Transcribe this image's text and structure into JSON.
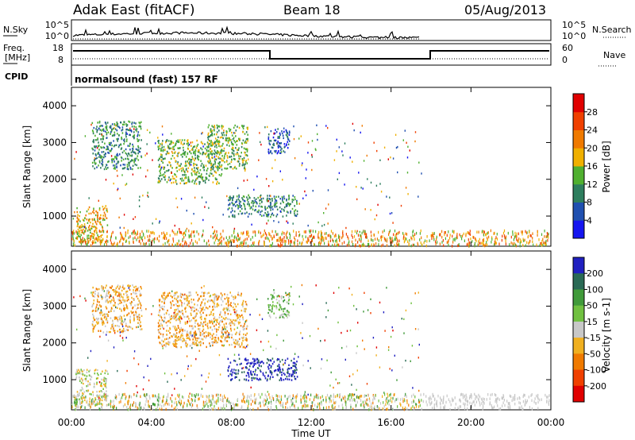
{
  "header": {
    "station": "Adak East (fitACF)",
    "beam": "Beam 18",
    "date": "05/Aug/2013"
  },
  "labels": {
    "nsky": "N.Sky",
    "nsearch": "N.Search",
    "freq_a": "Freq.",
    "freq_b": "[MHz]",
    "nave": "Nave",
    "cpid": "CPID",
    "program": "normalsound (fast) 157 RF",
    "xlabel": "Time UT"
  },
  "noise_axis": {
    "left": [
      "10^5",
      "10^0"
    ],
    "right": [
      "10^5",
      "10^0"
    ]
  },
  "freq_axis": {
    "left": [
      "18",
      "8"
    ],
    "right": [
      "60",
      "0"
    ]
  },
  "x_ticks": [
    "00:00",
    "04:00",
    "08:00",
    "12:00",
    "16:00",
    "20:00",
    "00:00"
  ],
  "chart_data": [
    {
      "type": "heatmap",
      "name": "power-panel",
      "xlabel": "Time UT",
      "ylabel": "Slant Range [km]",
      "xlim": [
        0,
        24
      ],
      "ylim": [
        180,
        4500
      ],
      "y_ticks": [
        1000,
        2000,
        3000,
        4000
      ],
      "colorbar": {
        "label": "Power [dB]",
        "ticks": [
          "4",
          "8",
          "12",
          "16",
          "20",
          "24",
          "28"
        ],
        "colors": [
          "#1515f0",
          "#2050b0",
          "#2e7e5e",
          "#50b030",
          "#f0b000",
          "#f07a00",
          "#f04000",
          "#e00000"
        ]
      },
      "regions": [
        {
          "t": [
            0.2,
            1.8
          ],
          "r": [
            300,
            1300
          ],
          "level": 4
        },
        {
          "t": [
            1.0,
            3.5
          ],
          "r": [
            2300,
            3600
          ],
          "level": 2
        },
        {
          "t": [
            4.3,
            7.5
          ],
          "r": [
            1900,
            3100
          ],
          "level": 3
        },
        {
          "t": [
            6.8,
            8.8
          ],
          "r": [
            2300,
            3500
          ],
          "level": 3
        },
        {
          "t": [
            7.8,
            11.3
          ],
          "r": [
            1000,
            1600
          ],
          "level": 2
        },
        {
          "t": [
            9.8,
            10.9
          ],
          "r": [
            2700,
            3400
          ],
          "level": 1
        }
      ]
    },
    {
      "type": "heatmap",
      "name": "velocity-panel",
      "xlabel": "Time UT",
      "ylabel": "Slant Range [km]",
      "xlim": [
        0,
        24
      ],
      "ylim": [
        180,
        4500
      ],
      "y_ticks": [
        1000,
        2000,
        3000,
        4000
      ],
      "colorbar": {
        "label": "Velocity [m s-1]",
        "ticks": [
          "200",
          "100",
          "50",
          "15",
          "-15",
          "-50",
          "-100",
          "-200"
        ],
        "colors": [
          "#2020c0",
          "#2a6a55",
          "#409a3a",
          "#70c040",
          "#c8c8c8",
          "#f0b020",
          "#f07a00",
          "#f04000",
          "#e00000"
        ]
      },
      "regions": [
        {
          "t": [
            0.2,
            1.8
          ],
          "r": [
            300,
            1300
          ],
          "level": 4
        },
        {
          "t": [
            1.0,
            3.5
          ],
          "r": [
            2300,
            3600
          ],
          "level": 5
        },
        {
          "t": [
            4.3,
            8.8
          ],
          "r": [
            1900,
            3400
          ],
          "level": 5
        },
        {
          "t": [
            7.8,
            11.3
          ],
          "r": [
            1000,
            1600
          ],
          "level": 0
        },
        {
          "t": [
            9.8,
            10.9
          ],
          "r": [
            2700,
            3400
          ],
          "level": 3
        }
      ]
    }
  ]
}
